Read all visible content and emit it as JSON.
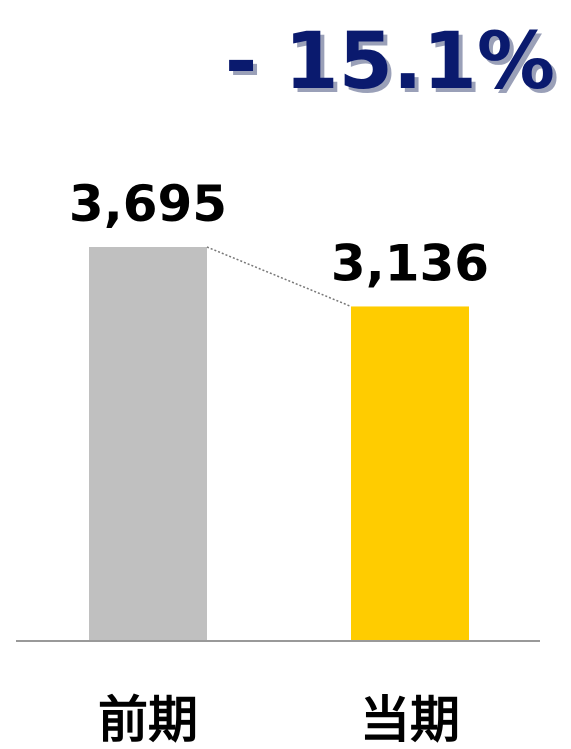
{
  "chart_data": {
    "type": "bar",
    "categories": [
      "前期",
      "当期"
    ],
    "values": [
      3695,
      3136
    ],
    "value_labels": [
      "3,695",
      "3,136"
    ],
    "ylim": [
      0,
      3695
    ],
    "grid": false,
    "connector_line": true,
    "annotation": "- 15.1%",
    "colors": {
      "bars": [
        "#c0c0c0",
        "#ffcc00"
      ],
      "annotation": "#0a1a6e",
      "annotation_shadow": "#9aa0b8",
      "labels": "#000000",
      "baseline": "#999999",
      "connector": "#777777"
    }
  }
}
